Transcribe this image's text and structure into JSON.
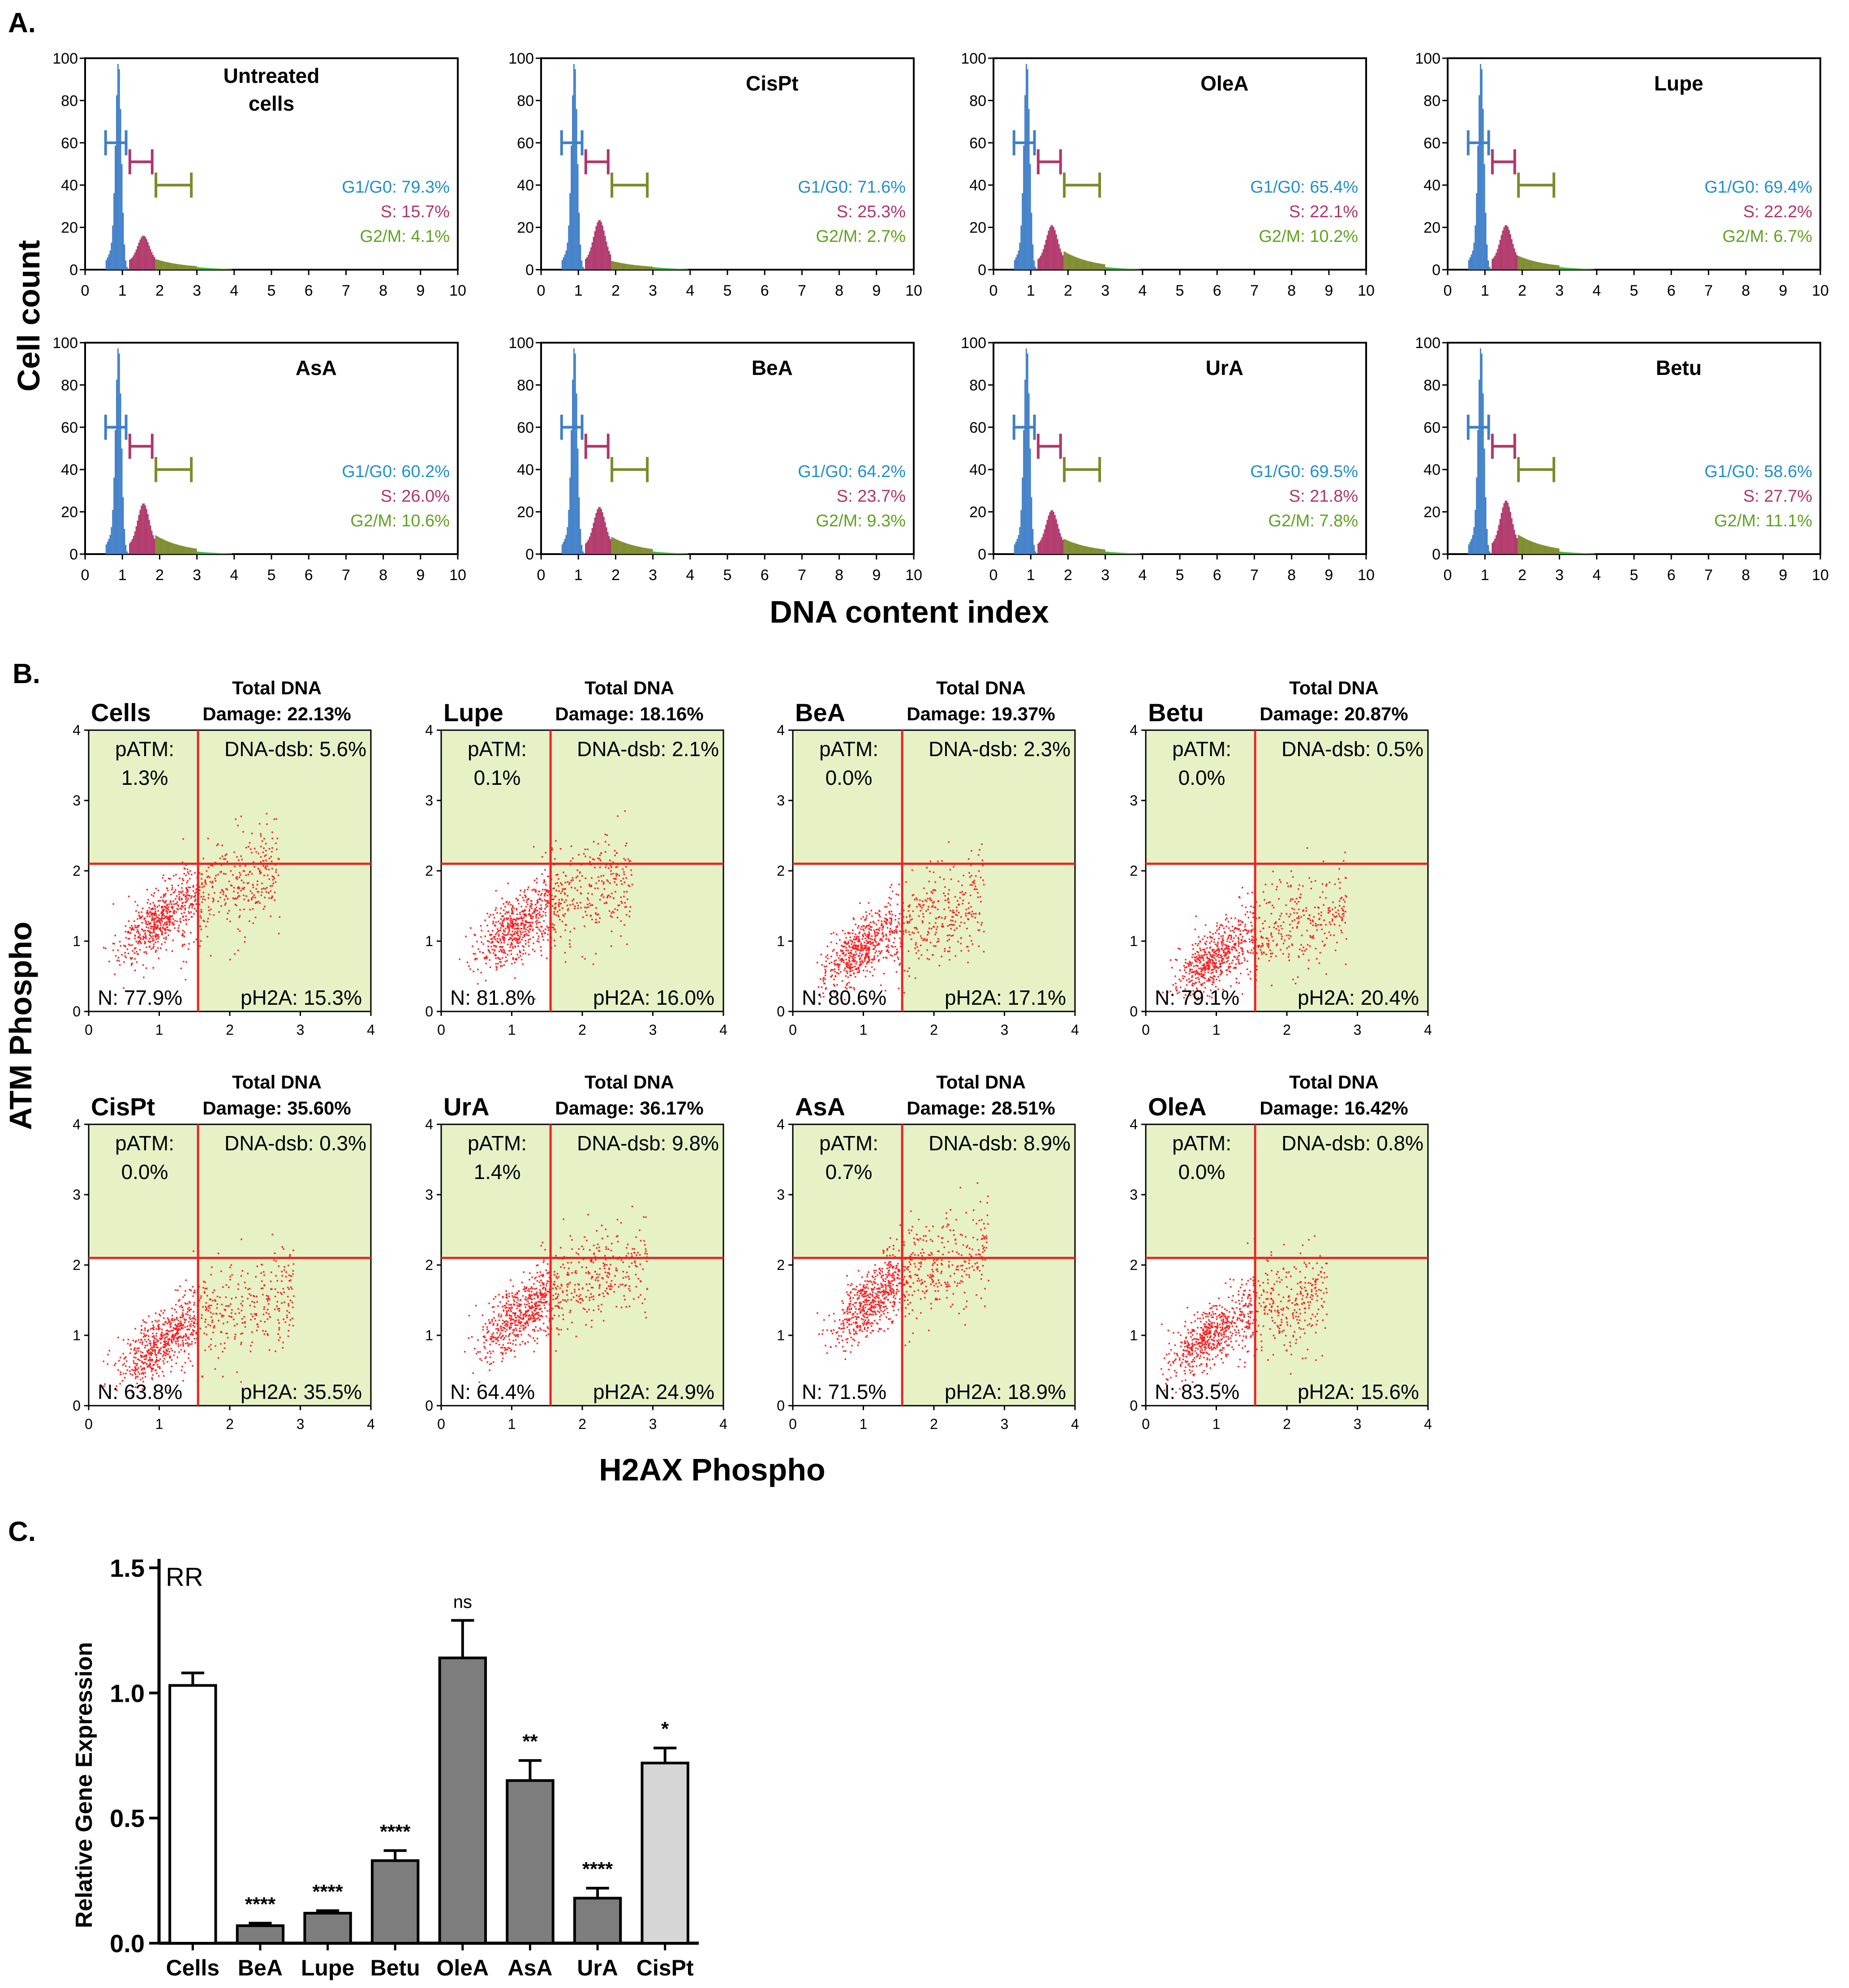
{
  "colors": {
    "g1": "#3f7fc8",
    "g1_text": "#1f8fd0",
    "s": "#b0366a",
    "s_text": "#b0366a",
    "g2": "#7d8a2a",
    "g2_text": "#5ea320",
    "dots": "#ff2020",
    "gate": "#ee2222",
    "quad_fill": "#e6f2c6",
    "bar_dark": "#7d7d7d",
    "bar_light": "#d6d6d6"
  },
  "panel_a": {
    "letter": "A.",
    "ylabel": "Cell count",
    "xlabel": "DNA content index",
    "plots": [
      {
        "title": "Untreated cells",
        "g1": "G1/G0: 79.3%",
        "s": "S: 15.7%",
        "g2": "G2/M: 4.1%",
        "g1_val": 79.3,
        "s_val": 15.7,
        "g2_val": 4.1
      },
      {
        "title": "CisPt",
        "g1": "G1/G0: 71.6%",
        "s": "S: 25.3%",
        "g2": "G2/M: 2.7%",
        "g1_val": 71.6,
        "s_val": 25.3,
        "g2_val": 2.7
      },
      {
        "title": "OleA",
        "g1": "G1/G0: 65.4%",
        "s": "S: 22.1%",
        "g2": "G2/M: 10.2%",
        "g1_val": 65.4,
        "s_val": 22.1,
        "g2_val": 10.2
      },
      {
        "title": "Lupe",
        "g1": "G1/G0: 69.4%",
        "s": "S: 22.2%",
        "g2": "G2/M: 6.7%",
        "g1_val": 69.4,
        "s_val": 22.2,
        "g2_val": 6.7
      },
      {
        "title": "AsA",
        "g1": "G1/G0: 60.2%",
        "s": "S: 26.0%",
        "g2": "G2/M: 10.6%",
        "g1_val": 60.2,
        "s_val": 26.0,
        "g2_val": 10.6
      },
      {
        "title": "BeA",
        "g1": "G1/G0: 64.2%",
        "s": "S: 23.7%",
        "g2": "G2/M: 9.3%",
        "g1_val": 64.2,
        "s_val": 23.7,
        "g2_val": 9.3
      },
      {
        "title": "UrA",
        "g1": "G1/G0: 69.5%",
        "s": "S: 21.8%",
        "g2": "G2/M: 7.8%",
        "g1_val": 69.5,
        "s_val": 21.8,
        "g2_val": 7.8
      },
      {
        "title": "Betu",
        "g1": "G1/G0: 58.6%",
        "s": "S: 27.7%",
        "g2": "G2/M: 11.1%",
        "g1_val": 58.6,
        "s_val": 27.7,
        "g2_val": 11.1
      }
    ],
    "x_ticks": [
      "0",
      "1",
      "2",
      "3",
      "4",
      "5",
      "6",
      "7",
      "8",
      "9",
      "10"
    ],
    "y_ticks": [
      "0",
      "20",
      "40",
      "60",
      "80",
      "100"
    ]
  },
  "panel_b": {
    "letter": "B.",
    "ylabel": "ATM Phospho",
    "xlabel": "H2AX Phospho",
    "x_ticks": [
      "0",
      "1",
      "2",
      "3",
      "4"
    ],
    "y_ticks": [
      "0",
      "1",
      "2",
      "3",
      "4"
    ],
    "total_line1": "Total DNA",
    "plots": [
      {
        "name": "Cells",
        "damage": "Damage: 22.13%",
        "patm_label": "pATM:",
        "patm": "1.3%",
        "dsb": "DNA-dsb: 5.6%",
        "n": "N: 77.9%",
        "ph2a": "pH2A: 15.3%",
        "cx": 1.0,
        "cy": 1.3,
        "spread": 1.0
      },
      {
        "name": "Lupe",
        "damage": "Damage: 18.16%",
        "patm_label": "pATM:",
        "patm": "0.1%",
        "dsb": "DNA-dsb: 2.1%",
        "n": "N: 81.8%",
        "ph2a": "pH2A: 16.0%",
        "cx": 1.05,
        "cy": 1.2,
        "spread": 1.0
      },
      {
        "name": "BeA",
        "damage": "Damage: 19.37%",
        "patm_label": "pATM:",
        "patm": "0.0%",
        "dsb": "DNA-dsb: 2.3%",
        "n": "N: 80.6%",
        "ph2a": "pH2A: 17.1%",
        "cx": 0.95,
        "cy": 0.9,
        "spread": 1.0
      },
      {
        "name": "Betu",
        "damage": "Damage: 20.87%",
        "patm_label": "pATM:",
        "patm": "0.0%",
        "dsb": "DNA-dsb: 0.5%",
        "n": "N: 79.1%",
        "ph2a": "pH2A: 20.4%",
        "cx": 0.95,
        "cy": 0.75,
        "spread": 1.1
      },
      {
        "name": "CisPt",
        "damage": "Damage: 35.60%",
        "patm_label": "pATM:",
        "patm": "0.0%",
        "dsb": "DNA-dsb: 0.3%",
        "n": "N: 63.8%",
        "ph2a": "pH2A: 35.5%",
        "cx": 1.0,
        "cy": 0.9,
        "spread": 1.15
      },
      {
        "name": "UrA",
        "damage": "Damage: 36.17%",
        "patm_label": "pATM:",
        "patm": "1.4%",
        "dsb": "DNA-dsb: 9.8%",
        "n": "N: 64.4%",
        "ph2a": "pH2A: 24.9%",
        "cx": 1.1,
        "cy": 1.3,
        "spread": 1.15
      },
      {
        "name": "AsA",
        "damage": "Damage: 28.51%",
        "patm_label": "pATM:",
        "patm": "0.7%",
        "dsb": "DNA-dsb: 8.9%",
        "n": "N: 71.5%",
        "ph2a": "pH2A: 18.9%",
        "cx": 1.1,
        "cy": 1.5,
        "spread": 1.05
      },
      {
        "name": "OleA",
        "damage": "Damage: 16.42%",
        "patm_label": "pATM:",
        "patm": "0.0%",
        "dsb": "DNA-dsb: 0.8%",
        "n": "N: 83.5%",
        "ph2a": "pH2A: 15.6%",
        "cx": 0.9,
        "cy": 1.0,
        "spread": 0.9
      }
    ]
  },
  "panel_c": {
    "letter": "C.",
    "chart_label": "RR",
    "ylabel": "Relative Gene Expression",
    "y_ticks": [
      "0.0",
      "0.5",
      "1.0",
      "1.5"
    ]
  },
  "chart_data": {
    "type": "bar",
    "categories": [
      "Cells",
      "BeA",
      "Lupe",
      "Betu",
      "OleA",
      "AsA",
      "UrA",
      "CisPt"
    ],
    "values": [
      1.03,
      0.07,
      0.12,
      0.33,
      1.14,
      0.65,
      0.18,
      0.72
    ],
    "errors": [
      0.05,
      0.01,
      0.01,
      0.04,
      0.15,
      0.08,
      0.04,
      0.06
    ],
    "significance": [
      "",
      "****",
      "****",
      "****",
      "ns",
      "**",
      "****",
      "*"
    ],
    "bar_styles": [
      "white",
      "dark",
      "dark",
      "dark",
      "dark",
      "dark",
      "dark",
      "light"
    ],
    "ylabel": "Relative Gene Expression",
    "ylim": [
      0,
      1.5
    ]
  }
}
